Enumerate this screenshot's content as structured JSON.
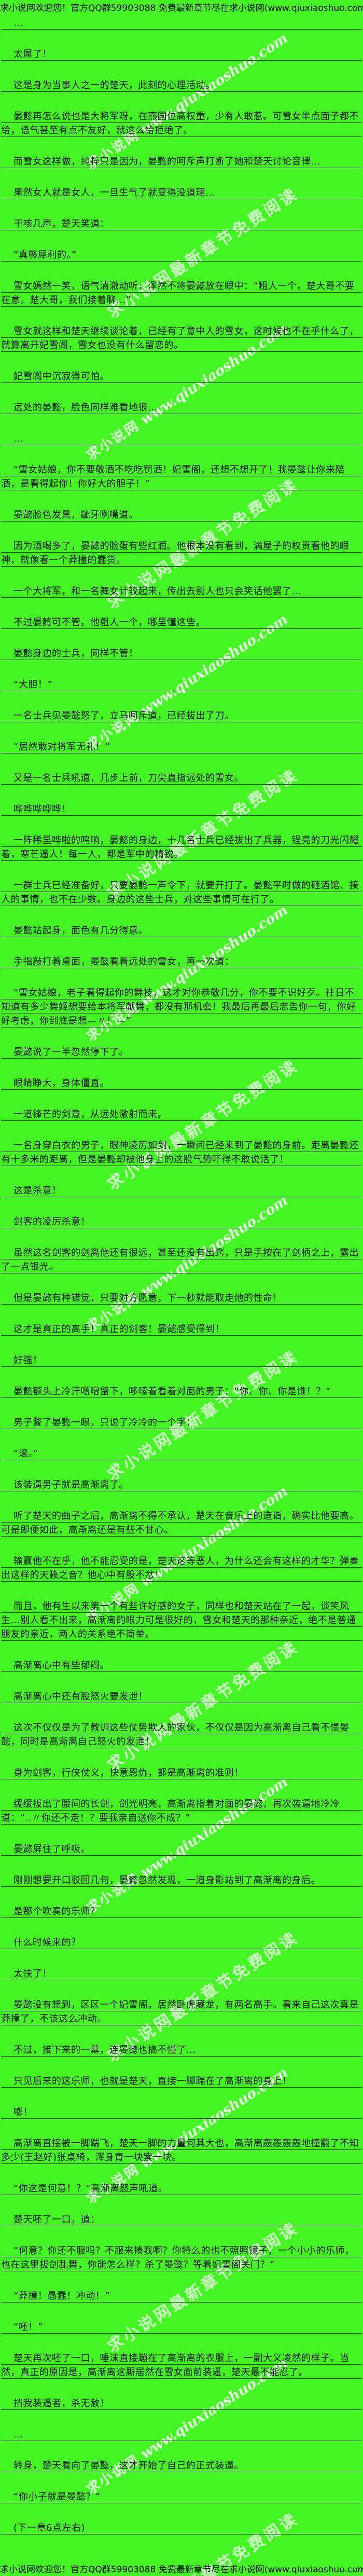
{
  "page": {
    "bg_color": "#44f523",
    "text_color": "#0d0d0d",
    "rule_color": "#141414"
  },
  "header": {
    "text": "求小说网欢迎您！官方QQ群59903088 免费最新章节尽在求小说网(www.qiuxiaoshuo.com)"
  },
  "footer": {
    "text": "求小说网欢迎您！官方QQ群59903088 免费最新章节尽在求小说网(www.qiuxiaoshuo.com)"
  },
  "watermarks": {
    "site_cn": "求小说网",
    "site_en": "www.qiuxiaoshuo.com",
    "promo_cn": "求小说网最新章节免费阅读"
  },
  "content": {
    "paragraphs": [
      "...",
      "太屌了！",
      "这是身为当事人之一的楚天，此刻的心理活动。",
      "晏懿再怎么说也是大将军呀，在燕国位高权重，少有人敢惹。可雪女半点面子都不给，语气甚至有点不友好，就这么给拒绝了。",
      "而雪女这样做，纯粹只是因为，晏懿的呵斥声打断了她和楚天讨论音律...",
      "果然女人就是女人，一旦生气了就变得没道理...",
      "干咳几声，楚天笑道：",
      "“真够犀利的。”",
      "雪女嫣然一笑，语气清澈动听，浑然不将晏懿放在眼中：“粗人一个，楚大哥不要在意。楚大哥，我们接着聊...”",
      "雪女就这样和楚天继续谈论着，已经有了意中人的雪女，这时候也不在乎什么了，就算离开妃雪阁，雪女也没有什么留恋的。",
      "妃雪阁中沉寂得可怕。",
      "远处的晏懿，脸色同样难看地很...",
      "...",
      "“雪女姑娘，你不要敬酒不吃吃罚酒！妃雪阁，还想不想开了！我晏懿让你来陪酒，是看得起你！你好大的胆子！”",
      "晏懿脸色发黑，龇牙咧嘴道。",
      "因为酒喝多了，晏懿的脸蛋有些红润。他根本没有看到，满屋子的权贵看他的眼神，就像看一个莽撞的蠢货。",
      "一个大将军，和一名舞女计较起来，传出去别人也只会笑话他罢了...",
      "不过晏懿可不管。他粗人一个，哪里懂这些。",
      "晏懿身边的士兵，同样不管！",
      "“大胆！”",
      "一名士兵见晏懿怒了，立马呵斥道，已经拔出了刀。",
      "“居然敢对将军无礼！”",
      "又是一名士兵吼道，几步上前，刀尖直指远处的雪女。",
      "哗哗哗哗哗！",
      "一阵稀里哗啦的鸣响，晏懿的身边，十几名士兵已经拔出了兵器，锃亮的刀光闪耀着，寒芒逼人！每一人，都是军中的精锐。",
      "一群士兵已经准备好，只要晏懿一声令下，就要开打了。晏懿平时做的砸酒馆、揍人的事情，也不在少数。身边的这些士兵，对这些事情可在行了。",
      "晏懿站起身，面色有几分得意。",
      "手指敲打着桌面，晏懿看着远处的雪女，再一次道：",
      "“雪女姑娘，老子看得起你的舞技，这才对你恭敬几分，你不要不识好歹。往日不知道有多少舞姬想要给本将军献舞，都没有那机会！我最后再最后忠告你一句，你好好考虑，你到底是想—〃！—”",
      "晏懿说了一半忽然停下了。",
      "眼睛睁大，身体僵直。",
      "一道锋芒的剑意，从远处激射而来。",
      "一名身穿白衣的男子，眼神凌厉如剑，一瞬间已经来到了晏懿的身前。距离晏懿还有十多米的距离，但是晏懿却被他身上的这股气势吓得不敢说话了！",
      "这是杀意！",
      "剑客的凌厉杀意！",
      "虽然这名剑客的剑离他还有很远，甚至还没有出窍，只是手按在了剑柄之上，露出了一点银光。",
      "但是晏懿有种错觉，只要对方愿意，下一秒就能取走他的性命！",
      "这才是真正的高手！真正的剑客！晏懿感受得到！",
      "好强！",
      "晏懿额头上冷汗噌噌留下，哆嗦着看着对面的男子：“你、你、你是谁！？”",
      "男子瞥了晏懿一眼，只说了冷冷的一个字：",
      "“滚。”",
      "该装逼男子就是高渐离了。",
      "听了楚天的曲子之后，高渐离不得不承认，楚天在音乐上的造诣，确实比他要高。可是即便如此，高渐离还是有些不甘心。",
      "输赢他不在乎，他不能忍受的是，楚天这等恶人，为什么还会有这样的才华？弹奏出这样的天籁之音？他心中有股不忿！",
      "而且，他有生以来第一个有些许好感的女子，同样也和楚天站在了一起，谈笑风生...别人看不出来，高渐离的眼力可是很好的，雪女和楚天的那种亲近，绝不是普通朋友的亲近，两人的关系绝不简单。",
      "高渐离心中有些郁闷。",
      "高渐离心中还有股怒火要发泄！",
      "这次不仅仅是为了教训这些仗势欺人的家伙，不仅仅是因为高渐离自己看不惯晏懿，同时是高渐离自己怒火的发泄！",
      "身为剑客，行侠仗义，快意恩仇，都是高渐离的准则！",
      "缓缓拔出了腰间的长剑，剑光明亮，高渐离指着对面的晏懿，再次装逼地冷冷道：“‥〃你还不走！？要我亲自送你不成？”",
      "晏懿屏住了呼吸。",
      "刚刚想要开口驳回几句，晏懿忽然发现，一道身影站到了高渐离的身后。",
      "是那个吹奏的乐师？",
      "什么时候来的？",
      "太快了！",
      "晏懿没有想到，区区一个妃雪阁，居然卧虎藏龙，有两名高手。看来自己这次真是莽撞了，不该这么冲动。",
      "不过，接下来的一幕，连晏懿也搞不懂了...",
      "只见后来的这乐师，也就是楚天，直接一脚踹在了高渐离的身上！",
      "嘭！",
      "高渐离直接被一脚踹飞，楚天一脚的力量何其大也，高渐离轰轰轰轰地撞翻了不知多少(王赵好)张桌椅，浑身青一块紫一块。",
      "“你这是何意！？”高渐离怒声吼道。",
      "楚天呸了一口，道：",
      "“何意？你还不服吗？不服来揍我啊？你特么的也不照照镜子，一个小小的乐师，也在这里拔剑乱舞，你能怎么样？杀了晏懿？等着妃雪阁关门？”",
      "“莽撞！愚蠢！冲动！”",
      "“呸！”",
      "楚天再次呸了一口，唾沫直接蹦在了高渐离的衣服上，一副大义凌然的样子。当然，真正的原因是，高渐离这厮居然在雪女面前装逼，楚天最不能忍了。",
      "挡我装逼者，杀无赦！",
      "...",
      "转身，楚天看向了晏懿，这才开始了自己的正式装逼。",
      "“你小子就是晏懿？”",
      "(下一章6点左右)"
    ]
  }
}
